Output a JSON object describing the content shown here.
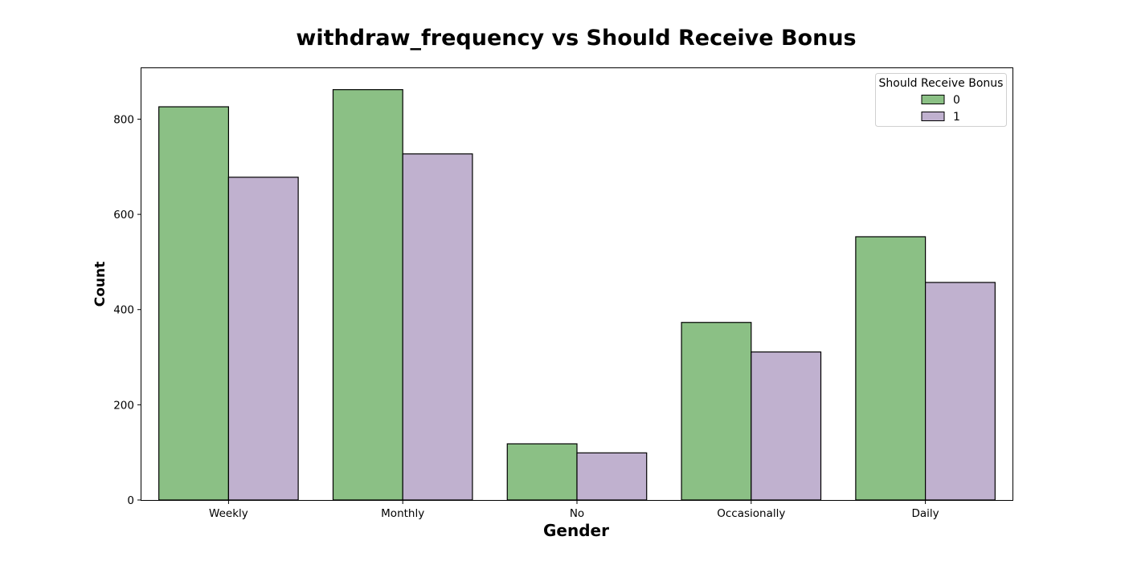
{
  "chart_data": {
    "type": "bar",
    "title": "withdraw_frequency vs Should Receive Bonus",
    "xlabel": "Gender",
    "ylabel": "Count",
    "categories": [
      "Weekly",
      "Monthly",
      "No",
      "Occasionally",
      "Daily"
    ],
    "series": [
      {
        "name": "0",
        "color": "#8bc085",
        "values": [
          826,
          862,
          118,
          373,
          553
        ]
      },
      {
        "name": "1",
        "color": "#c0b1cf",
        "values": [
          678,
          727,
          99,
          311,
          457
        ]
      }
    ],
    "ylim": [
      0,
      907
    ],
    "yticks": [
      0,
      200,
      400,
      600,
      800
    ],
    "legend": {
      "title": "Should Receive Bonus",
      "placement": "top-right"
    },
    "grid": false,
    "edge_color": "#000000"
  }
}
